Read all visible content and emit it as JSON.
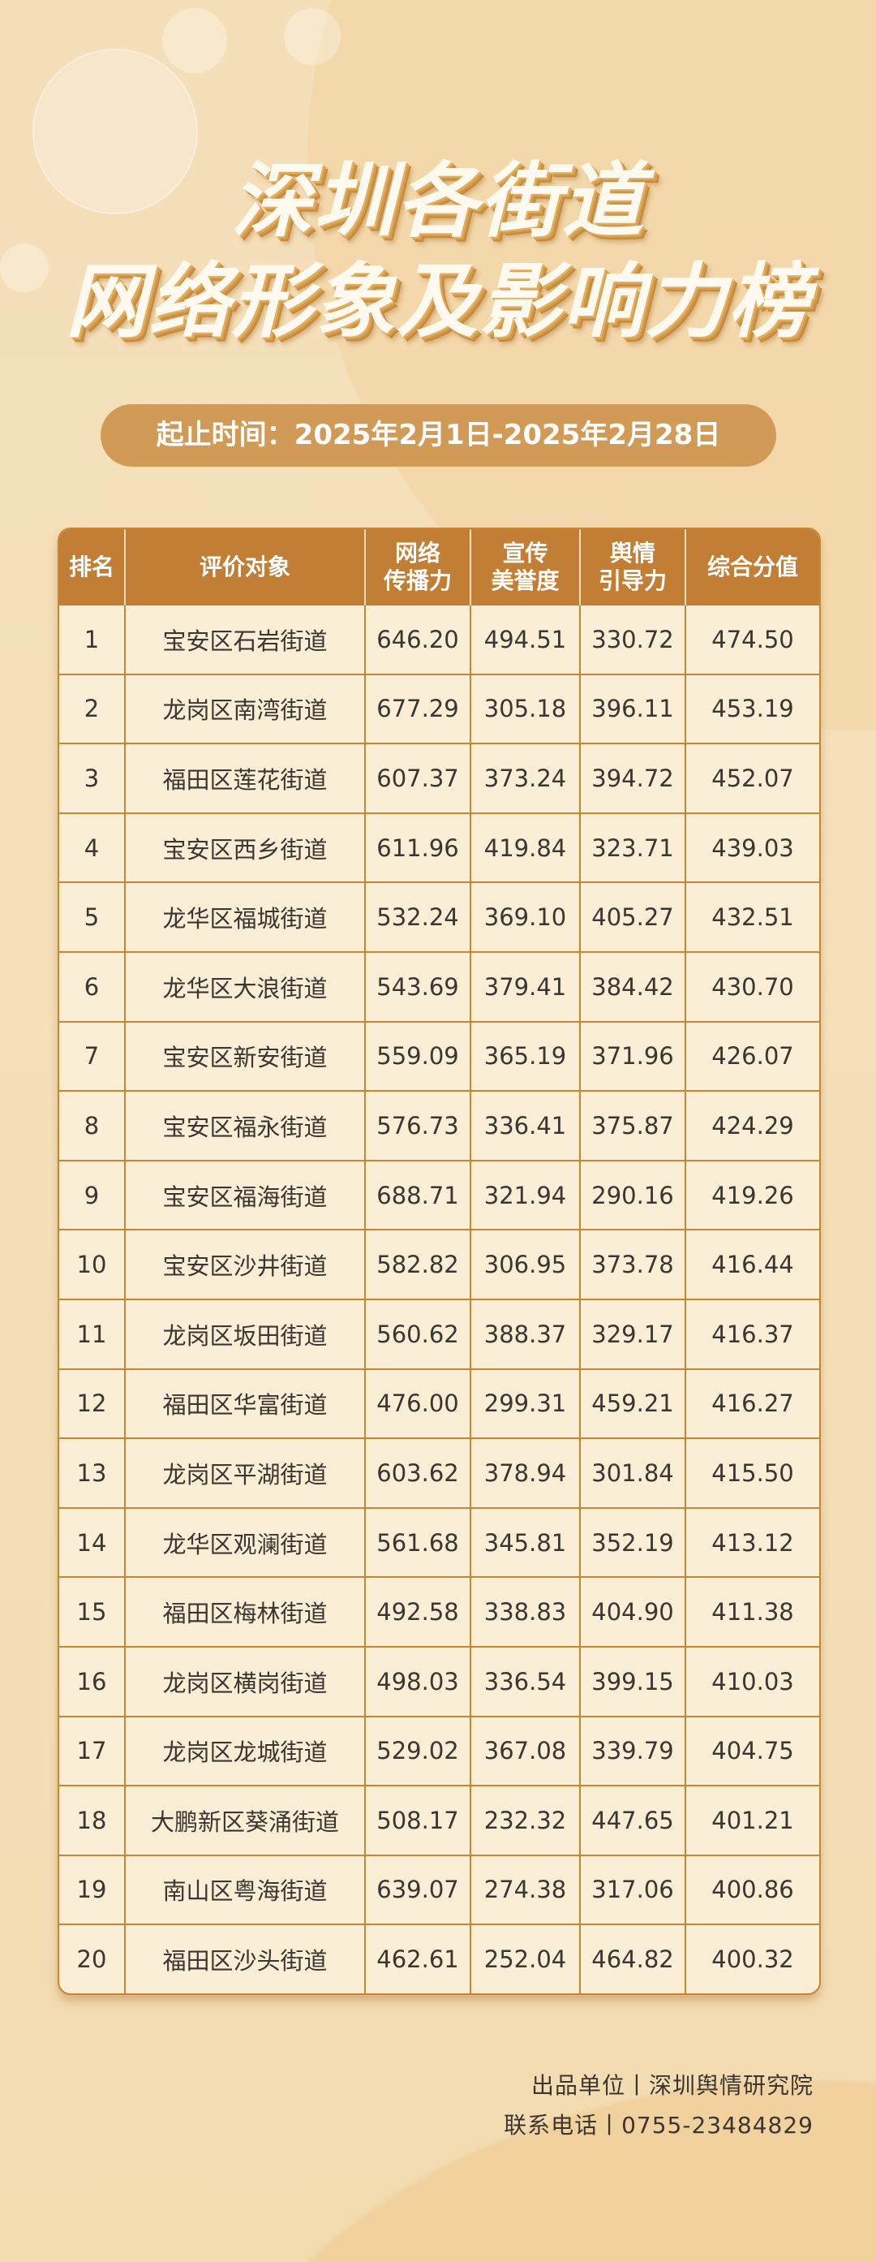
{
  "title": {
    "line1": "深圳各街道",
    "line2": "网络形象及影响力榜"
  },
  "period": "起止时间：2025年2月1日-2025年2月28日",
  "colors": {
    "header": "#c17e34",
    "pill": "#d19b57",
    "border": "#c8862f",
    "cell": "#fbeed6",
    "background": "#f4dfb9"
  },
  "table": {
    "headers": [
      [
        "排名"
      ],
      [
        "评价对象"
      ],
      [
        "网络",
        "传播力"
      ],
      [
        "宣传",
        "美誉度"
      ],
      [
        "舆情",
        "引导力"
      ],
      [
        "综合分值"
      ]
    ],
    "rows": [
      [
        "1",
        "宝安区石岩街道",
        "646.20",
        "494.51",
        "330.72",
        "474.50"
      ],
      [
        "2",
        "龙岗区南湾街道",
        "677.29",
        "305.18",
        "396.11",
        "453.19"
      ],
      [
        "3",
        "福田区莲花街道",
        "607.37",
        "373.24",
        "394.72",
        "452.07"
      ],
      [
        "4",
        "宝安区西乡街道",
        "611.96",
        "419.84",
        "323.71",
        "439.03"
      ],
      [
        "5",
        "龙华区福城街道",
        "532.24",
        "369.10",
        "405.27",
        "432.51"
      ],
      [
        "6",
        "龙华区大浪街道",
        "543.69",
        "379.41",
        "384.42",
        "430.70"
      ],
      [
        "7",
        "宝安区新安街道",
        "559.09",
        "365.19",
        "371.96",
        "426.07"
      ],
      [
        "8",
        "宝安区福永街道",
        "576.73",
        "336.41",
        "375.87",
        "424.29"
      ],
      [
        "9",
        "宝安区福海街道",
        "688.71",
        "321.94",
        "290.16",
        "419.26"
      ],
      [
        "10",
        "宝安区沙井街道",
        "582.82",
        "306.95",
        "373.78",
        "416.44"
      ],
      [
        "11",
        "龙岗区坂田街道",
        "560.62",
        "388.37",
        "329.17",
        "416.37"
      ],
      [
        "12",
        "福田区华富街道",
        "476.00",
        "299.31",
        "459.21",
        "416.27"
      ],
      [
        "13",
        "龙岗区平湖街道",
        "603.62",
        "378.94",
        "301.84",
        "415.50"
      ],
      [
        "14",
        "龙华区观澜街道",
        "561.68",
        "345.81",
        "352.19",
        "413.12"
      ],
      [
        "15",
        "福田区梅林街道",
        "492.58",
        "338.83",
        "404.90",
        "411.38"
      ],
      [
        "16",
        "龙岗区横岗街道",
        "498.03",
        "336.54",
        "399.15",
        "410.03"
      ],
      [
        "17",
        "龙岗区龙城街道",
        "529.02",
        "367.08",
        "339.79",
        "404.75"
      ],
      [
        "18",
        "大鹏新区葵涌街道",
        "508.17",
        "232.32",
        "447.65",
        "401.21"
      ],
      [
        "19",
        "南山区粤海街道",
        "639.07",
        "274.38",
        "317.06",
        "400.86"
      ],
      [
        "20",
        "福田区沙头街道",
        "462.61",
        "252.04",
        "464.82",
        "400.32"
      ]
    ]
  },
  "footer": {
    "producer": "出品单位丨深圳舆情研究院",
    "contact": "联系电话丨0755-23484829"
  },
  "icons": [
    "wifi-icon",
    "cloud-icon",
    "cloud-download-icon",
    "share-icon"
  ]
}
